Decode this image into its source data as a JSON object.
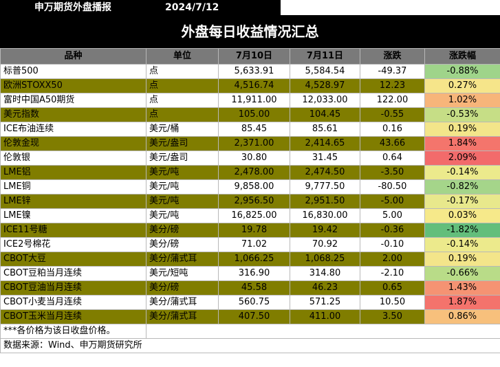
{
  "header": {
    "brand": "申万期货外盘播报",
    "date": "2024/7/12"
  },
  "title": "外盘每日收益情况汇总",
  "columns": [
    "品种",
    "单位",
    "7月10日",
    "7月11日",
    "涨跌",
    "涨跌幅"
  ],
  "rows": [
    {
      "name": "标普500",
      "unit": "点",
      "d1": "5,633.91",
      "d2": "5,584.54",
      "chg": "-49.37",
      "pct": "-0.88%",
      "style": "plain",
      "pct_color": "#9fd48a"
    },
    {
      "name": "欧洲STOXX50",
      "unit": "点",
      "d1": "4,516.74",
      "d2": "4,528.97",
      "chg": "12.23",
      "pct": "0.27%",
      "style": "olive",
      "pct_color": "#f6e58a"
    },
    {
      "name": "富时中国A50期货",
      "unit": "点",
      "d1": "11,911.00",
      "d2": "12,033.00",
      "chg": "122.00",
      "pct": "1.02%",
      "style": "plain",
      "pct_color": "#f7b57a"
    },
    {
      "name": "美元指数",
      "unit": "点",
      "d1": "105.00",
      "d2": "104.45",
      "chg": "-0.55",
      "pct": "-0.53%",
      "style": "olive",
      "pct_color": "#c6de86"
    },
    {
      "name": "ICE布油连续",
      "unit": "美元/桶",
      "d1": "85.45",
      "d2": "85.61",
      "chg": "0.16",
      "pct": "0.19%",
      "style": "plain",
      "pct_color": "#f3e58a"
    },
    {
      "name": "伦敦金现",
      "unit": "美元/盎司",
      "d1": "2,371.00",
      "d2": "2,414.65",
      "chg": "43.66",
      "pct": "1.84%",
      "style": "olive",
      "pct_color": "#f4756c"
    },
    {
      "name": "伦敦银",
      "unit": "美元/盎司",
      "d1": "30.80",
      "d2": "31.45",
      "chg": "0.64",
      "pct": "2.09%",
      "style": "plain",
      "pct_color": "#f26b6b"
    },
    {
      "name": "LME铝",
      "unit": "美元/吨",
      "d1": "2,478.00",
      "d2": "2,474.50",
      "chg": "-3.50",
      "pct": "-0.14%",
      "style": "olive",
      "pct_color": "#ecea8c"
    },
    {
      "name": "LME铜",
      "unit": "美元/吨",
      "d1": "9,858.00",
      "d2": "9,777.50",
      "chg": "-80.50",
      "pct": "-0.82%",
      "style": "plain",
      "pct_color": "#a5d58a"
    },
    {
      "name": "LME锌",
      "unit": "美元/吨",
      "d1": "2,956.50",
      "d2": "2,951.50",
      "chg": "-5.00",
      "pct": "-0.17%",
      "style": "olive",
      "pct_color": "#e8e88c"
    },
    {
      "name": "LME镍",
      "unit": "美元/吨",
      "d1": "16,825.00",
      "d2": "16,830.00",
      "chg": "5.00",
      "pct": "0.03%",
      "style": "plain",
      "pct_color": "#f6e98a"
    },
    {
      "name": "ICE11号糖",
      "unit": "美分/磅",
      "d1": "19.78",
      "d2": "19.42",
      "chg": "-0.36",
      "pct": "-1.82%",
      "style": "olive",
      "pct_color": "#63be7b"
    },
    {
      "name": "ICE2号棉花",
      "unit": "美分/磅",
      "d1": "71.02",
      "d2": "70.92",
      "chg": "-0.10",
      "pct": "-0.14%",
      "style": "plain",
      "pct_color": "#ecea8c"
    },
    {
      "name": "CBOT大豆",
      "unit": "美分/蒲式耳",
      "d1": "1,066.25",
      "d2": "1,068.25",
      "chg": "2.00",
      "pct": "0.19%",
      "style": "olive",
      "pct_color": "#f3e58a"
    },
    {
      "name": "CBOT豆粕当月连续",
      "unit": "美元/短吨",
      "d1": "316.90",
      "d2": "314.80",
      "chg": "-2.10",
      "pct": "-0.66%",
      "style": "plain",
      "pct_color": "#b9dc88"
    },
    {
      "name": "CBOT豆油当月连续",
      "unit": "美分/磅",
      "d1": "45.58",
      "d2": "46.23",
      "chg": "0.65",
      "pct": "1.43%",
      "style": "olive",
      "pct_color": "#f59373"
    },
    {
      "name": "CBOT小麦当月连续",
      "unit": "美分/蒲式耳",
      "d1": "560.75",
      "d2": "571.25",
      "chg": "10.50",
      "pct": "1.87%",
      "style": "plain",
      "pct_color": "#f4736c"
    },
    {
      "name": "CBOT玉米当月连续",
      "unit": "美分/蒲式耳",
      "d1": "407.50",
      "d2": "411.00",
      "chg": "3.50",
      "pct": "0.86%",
      "style": "olive",
      "pct_color": "#f7c07c"
    }
  ],
  "notes": [
    "***各价格为该日收盘价格。",
    "数据来源：Wind、申万期货研究所"
  ]
}
